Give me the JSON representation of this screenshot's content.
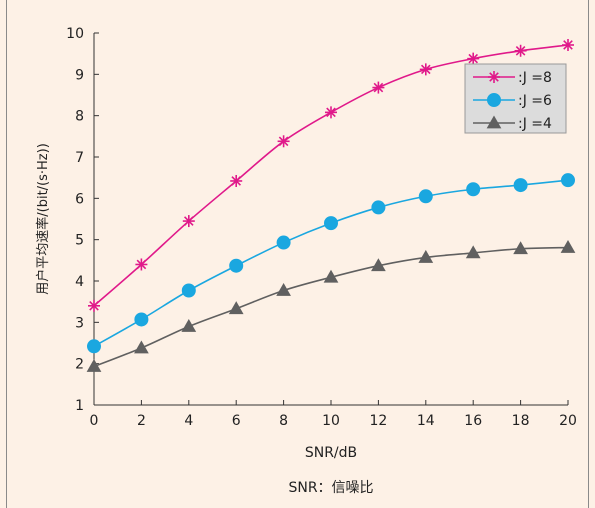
{
  "chart_data": {
    "type": "line",
    "x": [
      0,
      2,
      4,
      6,
      8,
      10,
      12,
      14,
      16,
      18,
      20
    ],
    "xlim": [
      0,
      20
    ],
    "ylim": [
      1,
      10
    ],
    "xticks": [
      "0",
      "2",
      "4",
      "6",
      "8",
      "10",
      "12",
      "14",
      "16",
      "18",
      "20"
    ],
    "yticks": [
      "1",
      "2",
      "3",
      "4",
      "5",
      "6",
      "7",
      "8",
      "9",
      "10"
    ],
    "xlabel": "SNR/dB",
    "ylabel": "用户平均速率/(bit/(s·Hz))",
    "caption": "SNR：信噪比",
    "legend_position": "top-right",
    "series": [
      {
        "name": "J =8",
        "marker": "asterisk",
        "color": "#e0198a",
        "values": [
          3.4,
          4.4,
          5.45,
          6.42,
          7.38,
          8.08,
          8.68,
          9.12,
          9.38,
          9.57,
          9.71
        ]
      },
      {
        "name": "J =6",
        "marker": "circle",
        "color": "#1aa7e0",
        "values": [
          2.42,
          3.07,
          3.77,
          4.37,
          4.93,
          5.4,
          5.78,
          6.05,
          6.22,
          6.32,
          6.44
        ]
      },
      {
        "name": "J =4",
        "marker": "triangle",
        "color": "#606060",
        "values": [
          1.93,
          2.38,
          2.9,
          3.33,
          3.77,
          4.09,
          4.37,
          4.57,
          4.68,
          4.78,
          4.81
        ]
      }
    ]
  }
}
